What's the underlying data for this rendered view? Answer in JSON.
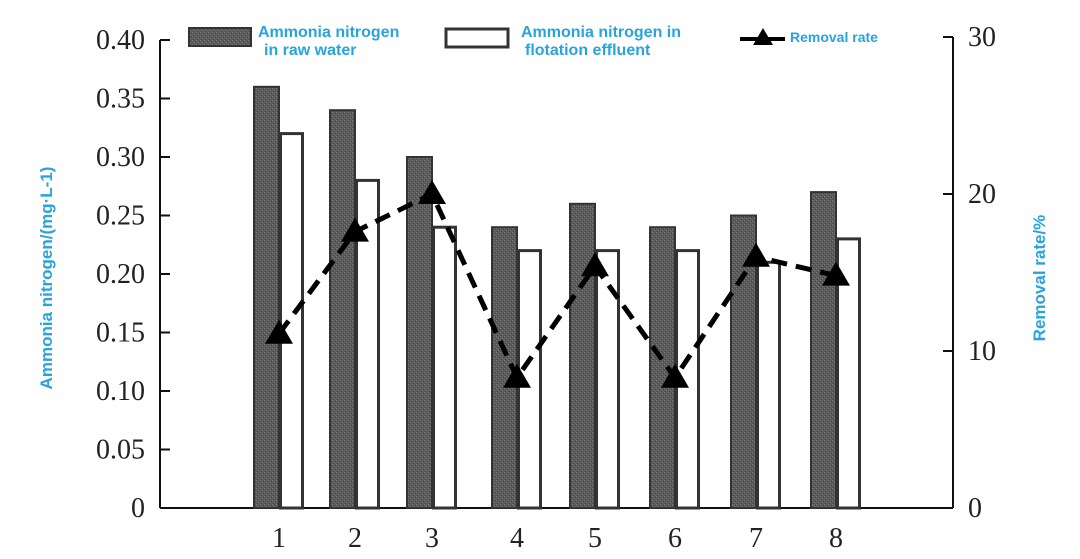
{
  "chart_data": {
    "type": "bar",
    "categories": [
      "1",
      "2",
      "3",
      "4",
      "5",
      "6",
      "7",
      "8"
    ],
    "series": [
      {
        "name": "Ammonia nitrogen in raw water",
        "kind": "bar",
        "axis": "left",
        "color": "#5a5a5a",
        "values": [
          0.36,
          0.34,
          0.3,
          0.24,
          0.26,
          0.24,
          0.25,
          0.27
        ]
      },
      {
        "name": "Ammonia nitrogen in flotation effluent",
        "kind": "bar",
        "axis": "left",
        "color": "#ffffff",
        "values": [
          0.32,
          0.28,
          0.24,
          0.22,
          0.22,
          0.22,
          0.21,
          0.23
        ]
      },
      {
        "name": "Removal rate",
        "kind": "line",
        "axis": "right",
        "color": "#000000",
        "values": [
          11.1,
          17.6,
          20.0,
          8.3,
          15.4,
          8.3,
          16.0,
          14.8
        ]
      }
    ],
    "ylabel": "Ammonia nitrogen/(mg·L-1)",
    "y2label": "Removal rate/%",
    "ylim": [
      0,
      0.4
    ],
    "y2lim": [
      0,
      30
    ],
    "yticks": [
      "0",
      "0.05",
      "0.10",
      "0.15",
      "0.20",
      "0.25",
      "0.30",
      "0.35",
      "0.40"
    ],
    "y2ticks": [
      "0",
      "10",
      "20",
      "30"
    ],
    "legend": {
      "raw_line1": "Ammonia nitrogen",
      "raw_line2": "in raw water",
      "eff_line1": "Ammonia nitrogen in",
      "eff_line2": "flotation effluent",
      "rate": "Removal rate",
      "placement": "top"
    }
  }
}
